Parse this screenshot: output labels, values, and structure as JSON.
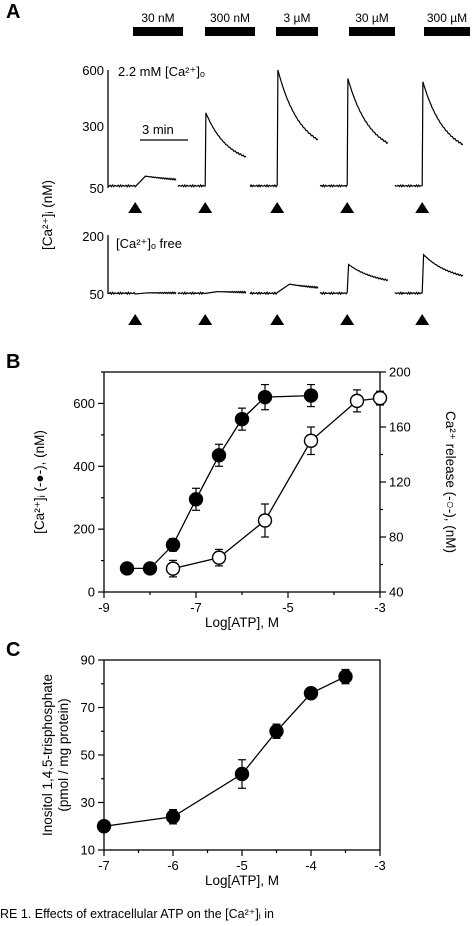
{
  "panel_letters": {
    "a": "A",
    "b": "B",
    "c": "C"
  },
  "caption": "RE 1.   Effects of extracellular ATP on the [Ca²⁺]ᵢ in",
  "chart_data": [
    {
      "panel": "A",
      "type": "line",
      "concentrations": [
        "30 nM",
        "300 nM",
        "3 µM",
        "30 µM",
        "300 µM"
      ],
      "ylabel": "[Ca²⁺]ᵢ (nM)",
      "scale_bar_label": "3 min",
      "traces": [
        {
          "condition": "2.2 mM [Ca²⁺]ₒ",
          "yticks": [
            "600",
            "300",
            "50"
          ],
          "ytick_values": [
            600,
            300,
            50
          ],
          "peak_values": [
            105,
            400,
            600,
            560,
            545
          ],
          "baseline": 60
        },
        {
          "condition": "[Ca²⁺]ₒ free",
          "yticks": [
            "200",
            "50"
          ],
          "ytick_values": [
            200,
            50
          ],
          "peak_values": [
            53,
            56,
            75,
            125,
            150
          ],
          "baseline": 52
        }
      ]
    },
    {
      "panel": "B",
      "type": "line",
      "xlabel": "Log[ATP], M",
      "ylabel": "[Ca²⁺]ᵢ (-●-), (nM)",
      "ylabel_right": "Ca²⁺ release (-○-), (nM)",
      "xlim": [
        -9,
        -3
      ],
      "ylim": [
        0,
        700
      ],
      "ylim_right": [
        40,
        200
      ],
      "xticks": [
        "-9",
        "-7",
        "-5",
        "-3"
      ],
      "yticks": [
        "0",
        "200",
        "400",
        "600"
      ],
      "yticks_right": [
        "40",
        "80",
        "120",
        "160",
        "200"
      ],
      "series": [
        {
          "marker": "filled-circle",
          "axis": "left",
          "x": [
            -8.5,
            -8,
            -7.5,
            -7,
            -6.5,
            -6,
            -5.5,
            -4.5
          ],
          "y": [
            75,
            75,
            150,
            295,
            435,
            550,
            620,
            625
          ],
          "err": [
            10,
            10,
            20,
            35,
            35,
            35,
            40,
            35
          ]
        },
        {
          "marker": "open-circle",
          "axis": "right",
          "x": [
            -7.5,
            -6.5,
            -5.5,
            -4.5,
            -3.5,
            -3
          ],
          "y": [
            57,
            65,
            92,
            150,
            179,
            181
          ],
          "err": [
            6,
            6,
            12,
            10,
            8,
            5
          ]
        }
      ]
    },
    {
      "panel": "C",
      "type": "line",
      "xlabel": "Log[ATP], M",
      "ylabel_lines": [
        "Inositol 1,4,5-trisphosphate",
        "(pmol / mg protein)"
      ],
      "xlim": [
        -7,
        -3
      ],
      "ylim": [
        10,
        90
      ],
      "xticks": [
        "-7",
        "-6",
        "-5",
        "-4",
        "-3"
      ],
      "yticks": [
        "10",
        "30",
        "50",
        "70",
        "90"
      ],
      "series": [
        {
          "marker": "filled-circle",
          "x": [
            -7,
            -6,
            -5,
            -4.5,
            -4,
            -3.5
          ],
          "y": [
            20,
            24,
            42,
            60,
            76,
            83
          ],
          "err": [
            2,
            3,
            6,
            3,
            2,
            3
          ]
        }
      ]
    }
  ]
}
